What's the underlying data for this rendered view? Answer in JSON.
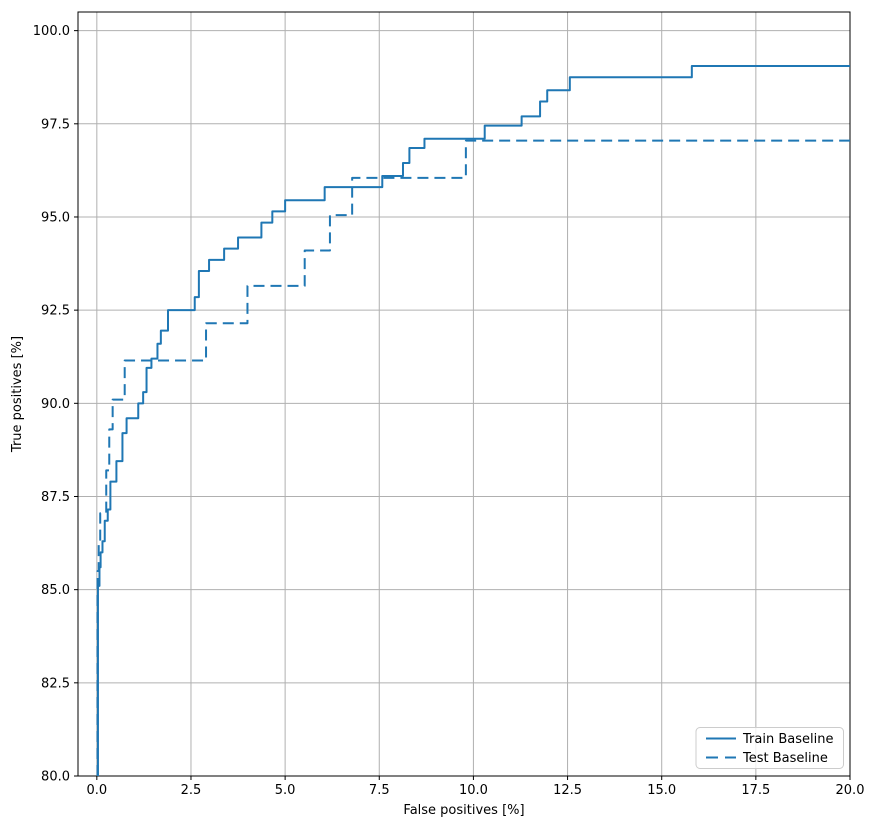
{
  "chart_data": {
    "type": "line",
    "subtype": "step-post",
    "title": "",
    "xlabel": "False positives [%]",
    "ylabel": "True positives [%]",
    "xlim": [
      -0.5,
      20.0
    ],
    "ylim": [
      80.0,
      100.5
    ],
    "x_end": 20.0,
    "y_start": 80.0,
    "grid": true,
    "grid_color": "#b0b0b0",
    "line_color": "#1f77b4",
    "xticks": [
      0.0,
      2.5,
      5.0,
      7.5,
      10.0,
      12.5,
      15.0,
      17.5,
      20.0
    ],
    "xtick_labels": [
      "0.0",
      "2.5",
      "5.0",
      "7.5",
      "10.0",
      "12.5",
      "15.0",
      "17.5",
      "20.0"
    ],
    "yticks": [
      80.0,
      82.5,
      85.0,
      87.5,
      90.0,
      92.5,
      95.0,
      97.5,
      100.0
    ],
    "ytick_labels": [
      "80.0",
      "82.5",
      "85.0",
      "87.5",
      "90.0",
      "92.5",
      "95.0",
      "97.5",
      "100.0"
    ],
    "legend": {
      "position": "lower right",
      "entries": [
        "Train Baseline",
        "Test Baseline"
      ]
    },
    "series": [
      {
        "name": "Train Baseline",
        "style": "solid",
        "color": "#1f77b4",
        "points": [
          [
            0.03,
            85.1
          ],
          [
            0.07,
            85.6
          ],
          [
            0.1,
            86.0
          ],
          [
            0.15,
            86.3
          ],
          [
            0.21,
            86.85
          ],
          [
            0.29,
            87.15
          ],
          [
            0.36,
            87.9
          ],
          [
            0.52,
            88.45
          ],
          [
            0.68,
            89.2
          ],
          [
            0.79,
            89.6
          ],
          [
            1.1,
            90.0
          ],
          [
            1.23,
            90.3
          ],
          [
            1.32,
            90.95
          ],
          [
            1.45,
            91.2
          ],
          [
            1.61,
            91.6
          ],
          [
            1.7,
            91.95
          ],
          [
            1.89,
            92.5
          ],
          [
            2.6,
            92.85
          ],
          [
            2.71,
            93.55
          ],
          [
            2.98,
            93.85
          ],
          [
            3.38,
            94.15
          ],
          [
            3.75,
            94.45
          ],
          [
            4.37,
            94.85
          ],
          [
            4.66,
            95.15
          ],
          [
            5.0,
            95.45
          ],
          [
            6.05,
            95.8
          ],
          [
            7.58,
            96.1
          ],
          [
            8.13,
            96.45
          ],
          [
            8.3,
            96.85
          ],
          [
            8.7,
            97.1
          ],
          [
            10.3,
            97.45
          ],
          [
            11.28,
            97.7
          ],
          [
            11.77,
            98.1
          ],
          [
            11.96,
            98.4
          ],
          [
            12.56,
            98.75
          ],
          [
            15.8,
            99.05
          ]
        ]
      },
      {
        "name": "Test Baseline",
        "style": "dashed",
        "color": "#1f77b4",
        "points": [
          [
            0.02,
            85.5
          ],
          [
            0.05,
            86.2
          ],
          [
            0.09,
            87.05
          ],
          [
            0.25,
            88.2
          ],
          [
            0.33,
            89.3
          ],
          [
            0.42,
            90.1
          ],
          [
            0.74,
            91.15
          ],
          [
            2.9,
            92.15
          ],
          [
            4.0,
            93.15
          ],
          [
            5.52,
            94.1
          ],
          [
            6.19,
            95.05
          ],
          [
            6.78,
            96.05
          ],
          [
            9.8,
            97.05
          ]
        ]
      }
    ]
  }
}
